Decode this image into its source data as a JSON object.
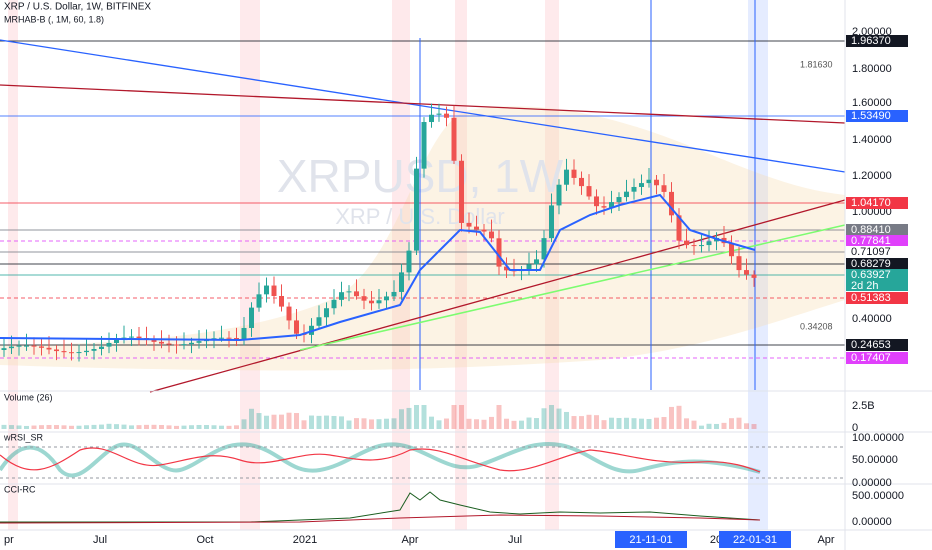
{
  "header": {
    "symbol": "XRP / U.S. Dollar, 1W, BITFINEX",
    "indicator": "MRHAB-B (, 1M, 60, 1.8)"
  },
  "watermark": {
    "ticker": "XRPUSD, 1W",
    "name": "XRP / U.S. Dollar"
  },
  "price_axis": {
    "ticks": [
      "2.00000",
      "1.80000",
      "1.60000",
      "1.40000",
      "1.20000",
      "1.00000",
      "0.40000"
    ]
  },
  "price_labels": [
    {
      "text": "1.96370",
      "color": "#131722"
    },
    {
      "text": "1.53490",
      "color": "#2962ff"
    },
    {
      "text": "1.04170",
      "color": "#f23645"
    },
    {
      "text": "0.88410",
      "color": "#787b86"
    },
    {
      "text": "0.77841",
      "color": "#e040fb"
    },
    {
      "text": "0.71097",
      "color": "#ffffff"
    },
    {
      "text": "0.68279",
      "color": "#131722"
    },
    {
      "text": "0.63927",
      "color": "#26a69a",
      "countdown": "2d 2h"
    },
    {
      "text": "0.51383",
      "color": "#f23645"
    },
    {
      "text": "0.24653",
      "color": "#131722"
    },
    {
      "text": "0.17407",
      "color": "#e040fb"
    }
  ],
  "annotations": [
    "1.81630",
    "0.34208"
  ],
  "panes": [
    {
      "title": "Volume (26)",
      "ticks": [
        "2.5B",
        "0"
      ]
    },
    {
      "title": "wRSI_SR",
      "ticks": [
        "100.00000",
        "50.00000",
        "0.00000"
      ]
    },
    {
      "title": "CCI-RC",
      "ticks": [
        "500.00000",
        "0.00000"
      ]
    }
  ],
  "time_axis": {
    "labels": [
      "pr",
      "Jul",
      "Oct",
      "2021",
      "Apr",
      "Jul",
      "20",
      "Apr"
    ],
    "markers": [
      "21-11-01",
      "22-01-31"
    ]
  }
}
